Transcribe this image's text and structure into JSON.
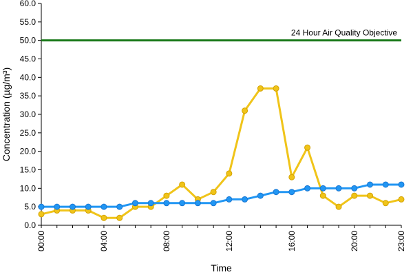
{
  "chart_data": {
    "type": "line",
    "title": "",
    "xlabel": "Time",
    "ylabel": "Concentration (µg/m³)",
    "ylim": [
      0,
      60
    ],
    "y_ticks": [
      "0.0",
      "5.0",
      "10.0",
      "15.0",
      "20.0",
      "25.0",
      "30.0",
      "35.0",
      "40.0",
      "45.0",
      "50.0",
      "55.0",
      "60.0"
    ],
    "x_ticks": [
      "00:00",
      "04:00",
      "08:00",
      "12:00",
      "16:00",
      "20:00",
      "23:00"
    ],
    "x_tick_hours": [
      0,
      4,
      8,
      12,
      16,
      20,
      23
    ],
    "x": [
      0,
      1,
      2,
      3,
      4,
      5,
      6,
      7,
      8,
      9,
      10,
      11,
      12,
      13,
      14,
      15,
      16,
      17,
      18,
      19,
      20,
      21,
      22,
      23
    ],
    "grid": false,
    "legend": "none",
    "series": [
      {
        "color": "#f0c419",
        "marker_fill": "#f0c419",
        "marker_stroke": "#d4a200",
        "values": [
          3,
          4,
          4,
          4,
          2,
          2,
          5,
          5,
          8,
          11,
          7,
          9,
          14,
          31,
          37,
          37,
          13,
          21,
          8,
          5,
          8,
          8,
          6,
          7
        ]
      },
      {
        "color": "#2196f3",
        "marker_fill": "#2196f3",
        "marker_stroke": "#1976d2",
        "values": [
          5,
          5,
          5,
          5,
          5,
          5,
          6,
          6,
          6,
          6,
          6,
          6,
          7,
          7,
          8,
          9,
          9,
          10,
          10,
          10,
          10,
          11,
          11,
          11
        ]
      }
    ],
    "reference_line": {
      "label": "24 Hour Air Quality Objective",
      "value": 50,
      "color": "#1a7a1a"
    }
  }
}
